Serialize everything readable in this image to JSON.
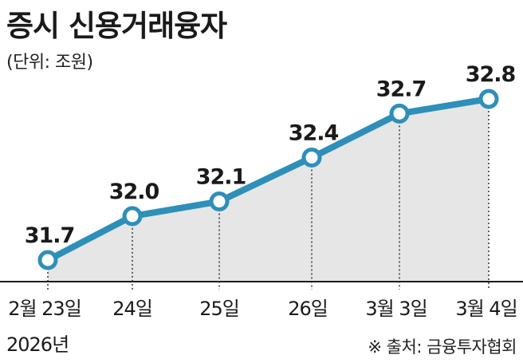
{
  "header": {
    "title": "증시 신용거래융자",
    "unit": "(단위: 조원)"
  },
  "source": "※ 출처: 금융투자협회",
  "year_label": "2026년",
  "colors": {
    "line": "#2e8fb9",
    "area": "#e6e6e6",
    "marker_fill": "#ffffff"
  },
  "chart_data": {
    "type": "area",
    "title": "증시 신용거래융자",
    "unit": "조원",
    "categories": [
      "2월 23일",
      "24일",
      "25일",
      "26일",
      "3월 3일",
      "3월 4일"
    ],
    "values": [
      31.7,
      32.0,
      32.1,
      32.4,
      32.7,
      32.8
    ],
    "data_labels": [
      "31.7",
      "32.0",
      "32.1",
      "32.4",
      "32.7",
      "32.8"
    ],
    "grid": false,
    "legend": "none"
  }
}
